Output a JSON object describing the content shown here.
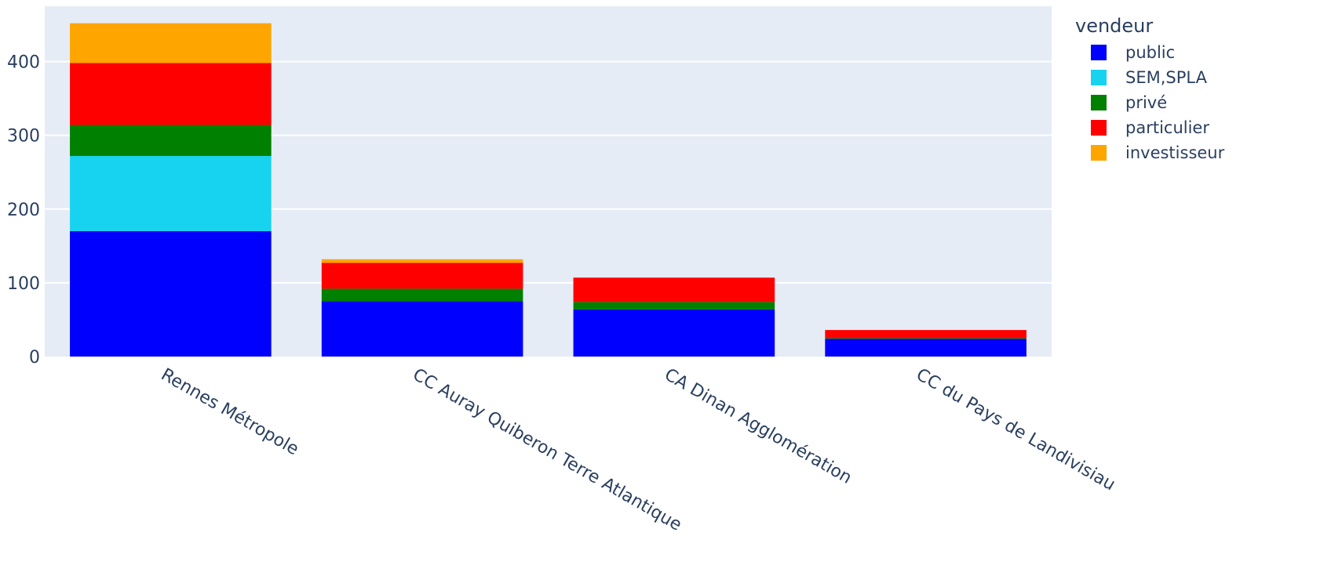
{
  "chart_data": {
    "type": "bar",
    "barmode": "stack",
    "categories": [
      "Rennes Métropole",
      "CC Auray Quiberon Terre Atlantique",
      "CA Dinan Agglomération",
      "CC du Pays de Landivisiau"
    ],
    "series": [
      {
        "name": "public",
        "color": "#0000ff",
        "values": [
          170,
          75,
          64,
          24
        ]
      },
      {
        "name": "SEM,SPLA",
        "color": "#17d3f0",
        "values": [
          102,
          0,
          0,
          0
        ]
      },
      {
        "name": "privé",
        "color": "#008000",
        "values": [
          42,
          17,
          10,
          1
        ]
      },
      {
        "name": "particulier",
        "color": "#ff0000",
        "values": [
          84,
          35,
          33,
          11
        ]
      },
      {
        "name": "investisseur",
        "color": "#ffa500",
        "values": [
          54,
          5,
          0,
          0
        ]
      }
    ],
    "ylim": [
      0,
      475
    ],
    "yticks": [
      0,
      100,
      200,
      300,
      400
    ],
    "legend": {
      "title": "vendeur",
      "position": "top-right"
    },
    "grid": true,
    "colors": {
      "plot_bg": "#e5ecf6",
      "grid": "#ffffff",
      "text": "#2a3f5f"
    }
  }
}
